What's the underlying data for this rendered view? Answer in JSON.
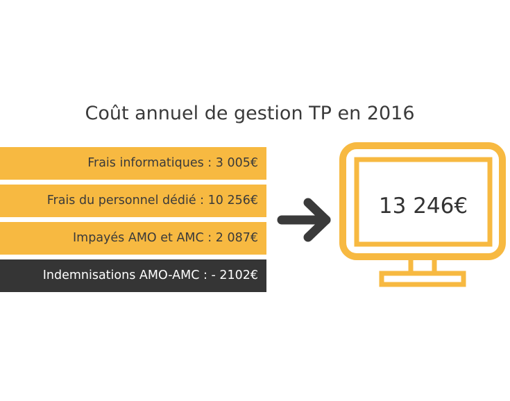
{
  "title": "Coût annuel de gestion TP en 2016",
  "items": [
    {
      "label": "Frais informatiques : 3 005€",
      "style": "orange"
    },
    {
      "label": "Frais du personnel dédié : 10 256€",
      "style": "orange"
    },
    {
      "label": "Impayés AMO et AMC : 2 087€",
      "style": "orange"
    },
    {
      "label": "Indemnisations AMO-AMC : - 2102€",
      "style": "dark"
    }
  ],
  "total": "13 246€",
  "icons": {
    "arrow": "arrow-right-icon",
    "monitor": "monitor-icon"
  },
  "colors": {
    "accent": "#f7b941",
    "dark": "#353535",
    "text": "#3a3a3a"
  }
}
